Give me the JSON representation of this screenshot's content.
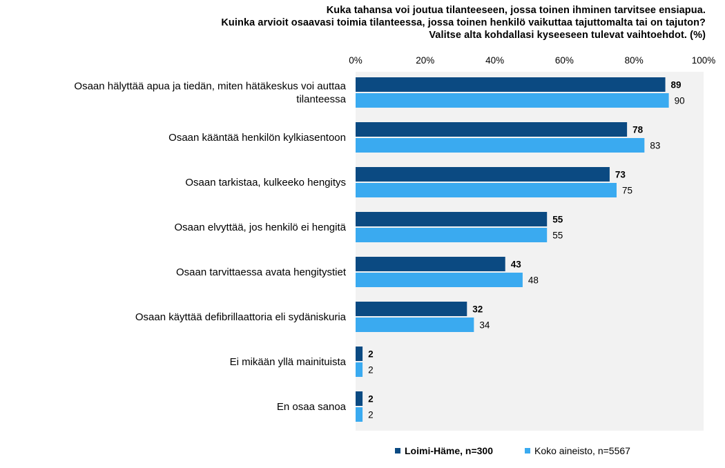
{
  "title_lines": [
    "Kuka tahansa voi joutua tilanteeseen, jossa toinen ihminen tarvitsee ensiapua.",
    "Kuinka arvioit osaavasi toimia tilanteessa, jossa toinen henkilö vaikuttaa tajuttomalta tai on tajuton?",
    "Valitse alta kohdallasi kyseeseen tulevat vaihtoehdot. (%)"
  ],
  "colors": {
    "series1": "#0b4a82",
    "series2": "#3aaaf0",
    "plot_bg": "#f2f2f2"
  },
  "chart_data": {
    "type": "bar",
    "orientation": "horizontal",
    "categories": [
      [
        "Osaan hälyttää apua ja tiedän, miten hätäkeskus voi auttaa",
        "tilanteessa"
      ],
      [
        "Osaan kääntää henkilön kylkiasentoon"
      ],
      [
        "Osaan tarkistaa, kulkeeko hengitys"
      ],
      [
        "Osaan elvyttää, jos henkilö ei hengitä"
      ],
      [
        "Osaan tarvittaessa avata hengitystiet"
      ],
      [
        "Osaan käyttää defibrillaattoria eli sydäniskuria"
      ],
      [
        "Ei mikään yllä mainituista"
      ],
      [
        "En osaa sanoa"
      ]
    ],
    "series": [
      {
        "name": "Loimi-Häme, n=300",
        "values": [
          89,
          78,
          73,
          55,
          43,
          32,
          2,
          2
        ],
        "bold": true
      },
      {
        "name": "Koko aineisto, n=5567",
        "values": [
          90,
          83,
          75,
          55,
          48,
          34,
          2,
          2
        ],
        "bold": false
      }
    ],
    "xlim": [
      0,
      100
    ],
    "xticks": [
      "0%",
      "20%",
      "40%",
      "60%",
      "80%",
      "100%"
    ],
    "xtick_values": [
      0,
      20,
      40,
      60,
      80,
      100
    ],
    "legend_position": "bottom"
  }
}
